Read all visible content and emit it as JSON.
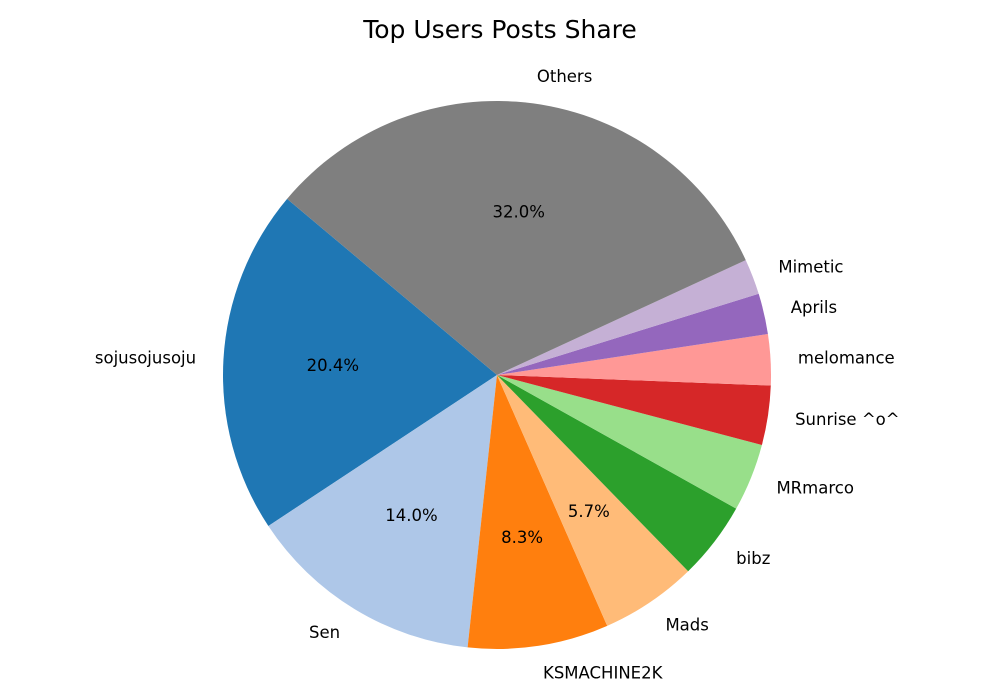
{
  "chart_data": {
    "type": "pie",
    "title": "Top Users Posts Share",
    "slices": [
      {
        "label": "sojusojusoju",
        "value": 20.4,
        "color": "#1f77b4",
        "pct_label": "20.4%"
      },
      {
        "label": "Sen",
        "value": 14.0,
        "color": "#aec7e8",
        "pct_label": "14.0%"
      },
      {
        "label": "KSMACHINE2K",
        "value": 8.3,
        "color": "#ff7f0e",
        "pct_label": "8.3%"
      },
      {
        "label": "Mads",
        "value": 5.7,
        "color": "#ffbb78",
        "pct_label": "5.7%"
      },
      {
        "label": "bibz",
        "value": 4.6,
        "color": "#2ca02c",
        "pct_label": ""
      },
      {
        "label": "MRmarco",
        "value": 4.0,
        "color": "#98df8a",
        "pct_label": ""
      },
      {
        "label": "Sunrise ^o^",
        "value": 3.5,
        "color": "#d62728",
        "pct_label": ""
      },
      {
        "label": "melomance",
        "value": 3.0,
        "color": "#ff9896",
        "pct_label": ""
      },
      {
        "label": "Aprils",
        "value": 2.4,
        "color": "#9467bd",
        "pct_label": ""
      },
      {
        "label": "Mimetic",
        "value": 2.1,
        "color": "#c5b0d5",
        "pct_label": ""
      },
      {
        "label": "Others",
        "value": 32.0,
        "color": "#7f7f7f",
        "pct_label": "32.0%"
      }
    ],
    "start_angle": 140,
    "direction": "counterclockwise",
    "label_distance": 1.1,
    "pct_distance": 0.6,
    "pct_shown_min_value": 5,
    "legend": "none",
    "grid": "off",
    "text_color": "#000000",
    "background": "#ffffff"
  }
}
